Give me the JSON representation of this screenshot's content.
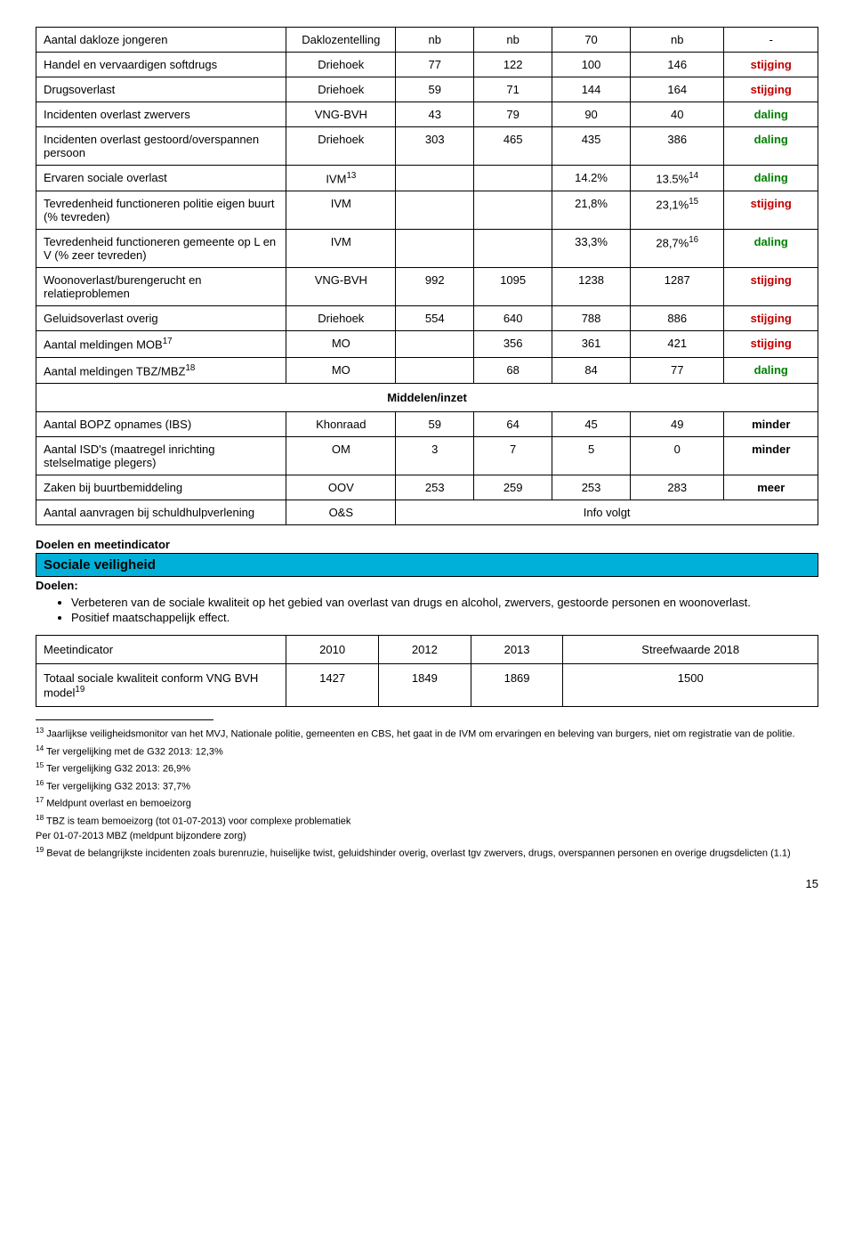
{
  "colors": {
    "stijging": "#c00000",
    "daling": "#008000",
    "banner": "#00b0d8",
    "border": "#000000",
    "text": "#000000",
    "background": "#ffffff"
  },
  "column_widths_pct": [
    32,
    14,
    10,
    10,
    10,
    12,
    12
  ],
  "trend_labels": {
    "stijging": "stijging",
    "daling": "daling",
    "minder": "minder",
    "meer": "meer"
  },
  "section_middelen": "Middelen/inzet",
  "main_rows": [
    {
      "label": "Aantal dakloze jongeren",
      "src": "Daklozentelling",
      "v": [
        "nb",
        "nb",
        "70",
        "nb",
        "-"
      ],
      "trend": null
    },
    {
      "label": "Handel en vervaardigen softdrugs",
      "src": "Driehoek",
      "v": [
        "77",
        "122",
        "100",
        "146"
      ],
      "trend": "stijging"
    },
    {
      "label": "Drugsoverlast",
      "src": "Driehoek",
      "v": [
        "59",
        "71",
        "144",
        "164"
      ],
      "trend": "stijging"
    },
    {
      "label": "Incidenten overlast zwervers",
      "src": "VNG-BVH",
      "v": [
        "43",
        "79",
        "90",
        "40"
      ],
      "trend": "daling"
    },
    {
      "label": "Incidenten overlast gestoord/overspannen persoon",
      "src": "Driehoek",
      "v": [
        "303",
        "465",
        "435",
        "386"
      ],
      "trend": "daling"
    },
    {
      "label": "Ervaren sociale overlast",
      "src_html": "IVM<sup>13</sup>",
      "v": [
        "",
        "",
        "14.2%",
        "13.5%<sup>14</sup>"
      ],
      "trend": "daling"
    },
    {
      "label": "Tevredenheid functioneren politie eigen buurt (% tevreden)",
      "src": "IVM",
      "v": [
        "",
        "",
        "21,8%",
        "23,1%<sup>15</sup>"
      ],
      "trend": "stijging"
    },
    {
      "label": "Tevredenheid functioneren gemeente op L en V (% zeer tevreden)",
      "src": "IVM",
      "v": [
        "",
        "",
        "33,3%",
        "28,7%<sup>16</sup>"
      ],
      "trend": "daling"
    },
    {
      "label": "Woonoverlast/burengerucht en relatieproblemen",
      "src": "VNG-BVH",
      "v": [
        "992",
        "1095",
        "1238",
        "1287"
      ],
      "trend": "stijging"
    },
    {
      "label": "Geluidsoverlast overig",
      "src": "Driehoek",
      "v": [
        "554",
        "640",
        "788",
        "886"
      ],
      "trend": "stijging"
    },
    {
      "label_html": "Aantal meldingen MOB<sup>17</sup>",
      "src": "MO",
      "v": [
        "",
        "356",
        "361",
        "421"
      ],
      "trend": "stijging"
    },
    {
      "label_html": "Aantal meldingen TBZ/MBZ<sup>18</sup>",
      "src": "MO",
      "v": [
        "",
        "68",
        "84",
        "77"
      ],
      "trend": "daling"
    }
  ],
  "middelen_rows": [
    {
      "label": "Aantal BOPZ opnames (IBS)",
      "src": "Khonraad",
      "v": [
        "59",
        "64",
        "45",
        "49"
      ],
      "trend": "minder"
    },
    {
      "label": "Aantal ISD's (maatregel inrichting stelselmatige plegers)",
      "src": "OM",
      "v": [
        "3",
        "7",
        "5",
        "0"
      ],
      "trend": "minder"
    },
    {
      "label": "Zaken bij buurtbemiddeling",
      "src": "OOV",
      "v": [
        "253",
        "259",
        "253",
        "283"
      ],
      "trend": "meer"
    },
    {
      "label": "Aantal aanvragen bij schuldhulpverlening",
      "src": "O&S",
      "info": "Info volgt"
    }
  ],
  "goals": {
    "heading": "Doelen en meetindicator",
    "banner": "Sociale veiligheid",
    "section_label": "Doelen:",
    "bullets": [
      "Verbeteren van de sociale kwaliteit op het gebied van overlast van drugs en alcohol, zwervers, gestoorde personen en woonoverlast.",
      "Positief maatschappelijk effect."
    ]
  },
  "indicator": {
    "headers": [
      "Meetindicator",
      "2010",
      "2012",
      "2013",
      "Streefwaarde 2018"
    ],
    "row": {
      "label_html": "Totaal sociale kwaliteit conform VNG BVH model<sup>19</sup>",
      "values": [
        "1427",
        "1849",
        "1869",
        "1500"
      ]
    }
  },
  "footnotes": [
    {
      "n": "13",
      "text": "Jaarlijkse veiligheidsmonitor van het MVJ, Nationale politie, gemeenten en CBS, het gaat in de IVM om ervaringen en beleving van burgers, niet om registratie van de politie."
    },
    {
      "n": "14",
      "text": "Ter vergelijking met de G32 2013: 12,3%"
    },
    {
      "n": "15",
      "text": "Ter vergelijking G32 2013: 26,9%"
    },
    {
      "n": "16",
      "text": "Ter vergelijking G32 2013: 37,7%"
    },
    {
      "n": "17",
      "text": "Meldpunt overlast en bemoeizorg"
    },
    {
      "n": "18",
      "text": "TBZ is team bemoeizorg (tot 01-07-2013) voor complexe problematiek",
      "extra": "Per  01-07-2013  MBZ (meldpunt bijzondere zorg)"
    },
    {
      "n": "19",
      "text": "Bevat de belangrijkste incidenten zoals burenruzie, huiselijke twist, geluidshinder overig, overlast tgv zwervers, drugs, overspannen personen en overige drugsdelicten (1.1)"
    }
  ],
  "page_number": "15"
}
